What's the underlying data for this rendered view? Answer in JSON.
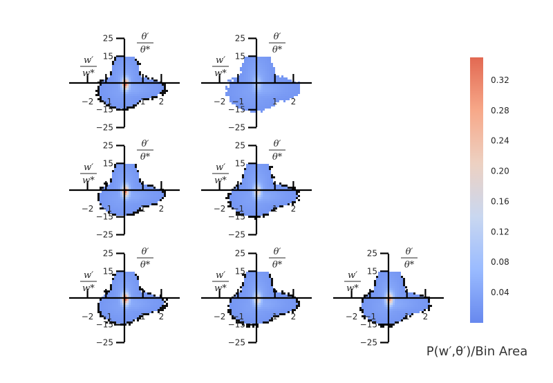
{
  "chart_data": {
    "type": "heatmap",
    "layout": {
      "rows": 3,
      "cols": 3,
      "panels_present": [
        [
          1,
          1,
          0
        ],
        [
          1,
          1,
          0
        ],
        [
          1,
          1,
          1
        ]
      ]
    },
    "x_axis": {
      "label_num": "w′",
      "label_den": "w*",
      "ticks": [
        -2,
        -1,
        1,
        2
      ],
      "tick_labels": [
        "−2",
        "−1",
        "1",
        "2"
      ],
      "range": [
        -3,
        3
      ]
    },
    "y_axis": {
      "label_num": "θ′",
      "label_den": "θ*",
      "ticks": [
        25,
        15,
        -15,
        -25
      ],
      "tick_labels": [
        "25",
        "15",
        "−15",
        "−25"
      ],
      "range": [
        -25,
        25
      ]
    },
    "colorbar": {
      "label": "P(w′,θ′)/Bin Area",
      "ticks": [
        0.04,
        0.08,
        0.12,
        0.16,
        0.2,
        0.24,
        0.28,
        0.32
      ],
      "tick_labels": [
        "0.04",
        "0.08",
        "0.12",
        "0.16",
        "0.20",
        "0.24",
        "0.28",
        "0.32"
      ],
      "range": [
        0,
        0.35
      ],
      "colormap": [
        "#6788ee",
        "#9abbff",
        "#c9d7f0",
        "#edd1c2",
        "#f7a889",
        "#e26952"
      ]
    },
    "panels": [
      {
        "row": 0,
        "col": 0,
        "peak": 0.34,
        "spread": 1.0,
        "outline_dark": true
      },
      {
        "row": 0,
        "col": 1,
        "peak": 0.1,
        "spread": 1.1,
        "outline_dark": false
      },
      {
        "row": 1,
        "col": 0,
        "peak": 0.32,
        "spread": 1.0,
        "outline_dark": true
      },
      {
        "row": 1,
        "col": 1,
        "peak": 0.22,
        "spread": 1.05,
        "outline_dark": true
      },
      {
        "row": 2,
        "col": 0,
        "peak": 0.35,
        "spread": 1.0,
        "outline_dark": true
      },
      {
        "row": 2,
        "col": 1,
        "peak": 0.2,
        "spread": 1.05,
        "outline_dark": true
      },
      {
        "row": 2,
        "col": 2,
        "peak": 0.3,
        "spread": 1.05,
        "outline_dark": true
      }
    ]
  }
}
